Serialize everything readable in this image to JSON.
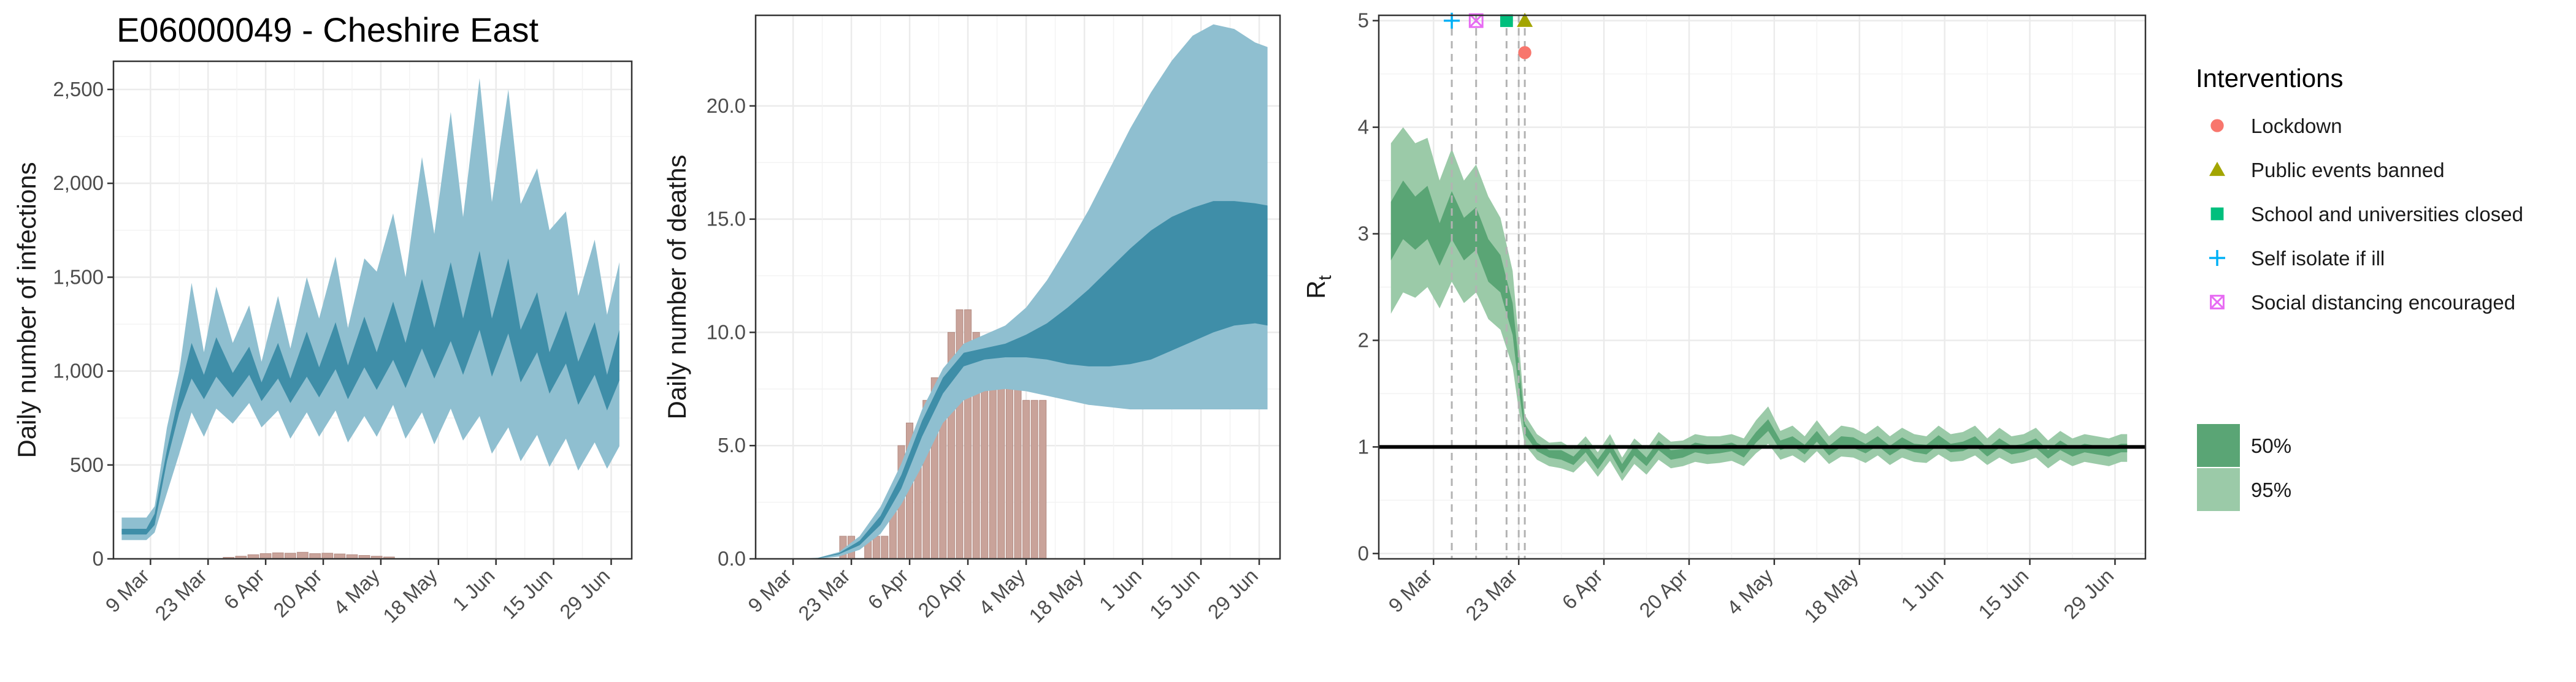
{
  "title": "E06000049 - Cheshire East",
  "colors": {
    "infections_band95": "#8fbfd0",
    "infections_band50": "#3f8ea8",
    "deaths_band95": "#8fbfd0",
    "deaths_band50": "#3f8ea8",
    "observed_bars": "#c9a39a",
    "rt_band95": "#9bcaa8",
    "rt_band50": "#5aa575",
    "rt_line": "#000000",
    "lockdown": "#f8766d",
    "public_events": "#a3a500",
    "schools": "#00bf7d",
    "self_isolate": "#00b0f6",
    "social_distancing": "#e76bf3",
    "grid": "#ebebeb",
    "panel_border": "#333333"
  },
  "chart_data": [
    {
      "id": "infections",
      "type": "area",
      "xlabel": "",
      "ylabel": "Daily number of infections",
      "x_range": [
        "2020-02-29",
        "2020-07-04"
      ],
      "ylim": [
        0,
        2650
      ],
      "x_ticks": [
        "9 Mar",
        "23 Mar",
        "6 Apr",
        "20 Apr",
        "4 May",
        "18 May",
        "1 Jun",
        "15 Jun",
        "29 Jun"
      ],
      "x_tick_dates": [
        "2020-03-09",
        "2020-03-23",
        "2020-04-06",
        "2020-04-20",
        "2020-05-04",
        "2020-05-18",
        "2020-06-01",
        "2020-06-15",
        "2020-06-29"
      ],
      "y_ticks": [
        0,
        500,
        1000,
        1500,
        2000,
        2500
      ],
      "y_tick_labels": [
        "0",
        "500",
        "1,000",
        "1,500",
        "2,000",
        "2,500"
      ],
      "series": [
        {
          "x": [
            "2020-03-02",
            "2020-03-08",
            "2020-03-10",
            "2020-03-13",
            "2020-03-16",
            "2020-03-19",
            "2020-03-22",
            "2020-03-25",
            "2020-03-29",
            "2020-04-02",
            "2020-04-05",
            "2020-04-09",
            "2020-04-12",
            "2020-04-16",
            "2020-04-19",
            "2020-04-23",
            "2020-04-26",
            "2020-04-30",
            "2020-05-03",
            "2020-05-07",
            "2020-05-10",
            "2020-05-14",
            "2020-05-17",
            "2020-05-21",
            "2020-05-24",
            "2020-05-28",
            "2020-05-31",
            "2020-06-04",
            "2020-06-07",
            "2020-06-11",
            "2020-06-14",
            "2020-06-18",
            "2020-06-21",
            "2020-06-25",
            "2020-06-28",
            "2020-07-01"
          ],
          "lower95": [
            100,
            100,
            140,
            350,
            560,
            780,
            650,
            800,
            720,
            830,
            700,
            790,
            640,
            780,
            650,
            790,
            620,
            760,
            650,
            820,
            640,
            780,
            610,
            800,
            630,
            760,
            560,
            700,
            520,
            660,
            490,
            640,
            470,
            620,
            480,
            600
          ],
          "upper95": [
            220,
            220,
            280,
            700,
            1000,
            1470,
            1100,
            1450,
            1150,
            1350,
            1050,
            1400,
            1120,
            1500,
            1280,
            1610,
            1230,
            1600,
            1530,
            1840,
            1500,
            2140,
            1730,
            2380,
            1820,
            2560,
            1900,
            2500,
            1890,
            2080,
            1750,
            1850,
            1400,
            1700,
            1300,
            1580
          ],
          "lower50": [
            130,
            130,
            180,
            520,
            780,
            960,
            850,
            970,
            860,
            980,
            840,
            960,
            830,
            970,
            860,
            1010,
            850,
            1020,
            900,
            1060,
            910,
            1120,
            960,
            1160,
            980,
            1220,
            970,
            1200,
            940,
            1100,
            880,
            1040,
            820,
            980,
            790,
            950
          ],
          "upper50": [
            160,
            160,
            240,
            580,
            880,
            1150,
            980,
            1180,
            990,
            1130,
            940,
            1150,
            960,
            1210,
            1020,
            1260,
            1030,
            1290,
            1100,
            1370,
            1150,
            1490,
            1230,
            1580,
            1280,
            1640,
            1280,
            1600,
            1220,
            1420,
            1100,
            1320,
            1050,
            1260,
            980,
            1220
          ]
        }
      ],
      "observed": {
        "x": [
          "2020-03-28",
          "2020-03-31",
          "2020-04-03",
          "2020-04-06",
          "2020-04-09",
          "2020-04-12",
          "2020-04-15",
          "2020-04-18",
          "2020-04-21",
          "2020-04-24",
          "2020-04-27",
          "2020-04-30",
          "2020-05-03",
          "2020-05-06"
        ],
        "values": [
          8,
          14,
          22,
          28,
          32,
          30,
          35,
          28,
          30,
          26,
          22,
          18,
          14,
          10
        ]
      }
    },
    {
      "id": "deaths",
      "type": "area",
      "xlabel": "",
      "ylabel": "Daily number of deaths",
      "x_range": [
        "2020-02-29",
        "2020-07-04"
      ],
      "ylim": [
        0,
        24
      ],
      "x_ticks": [
        "9 Mar",
        "23 Mar",
        "6 Apr",
        "20 Apr",
        "4 May",
        "18 May",
        "1 Jun",
        "15 Jun",
        "29 Jun"
      ],
      "x_tick_dates": [
        "2020-03-09",
        "2020-03-23",
        "2020-04-06",
        "2020-04-20",
        "2020-05-04",
        "2020-05-18",
        "2020-06-01",
        "2020-06-15",
        "2020-06-29"
      ],
      "y_ticks": [
        0,
        5,
        10,
        15,
        20
      ],
      "y_tick_labels": [
        "0.0",
        "5.0",
        "10.0",
        "15.0",
        "20.0"
      ],
      "series": [
        {
          "x": [
            "2020-03-10",
            "2020-03-15",
            "2020-03-20",
            "2020-03-25",
            "2020-03-30",
            "2020-04-04",
            "2020-04-09",
            "2020-04-14",
            "2020-04-19",
            "2020-04-24",
            "2020-04-29",
            "2020-05-04",
            "2020-05-09",
            "2020-05-14",
            "2020-05-19",
            "2020-05-24",
            "2020-05-29",
            "2020-06-03",
            "2020-06-08",
            "2020-06-13",
            "2020-06-18",
            "2020-06-23",
            "2020-06-28",
            "2020-07-01"
          ],
          "lower95": [
            0,
            0,
            0.1,
            0.4,
            1.1,
            2.4,
            4.1,
            6.0,
            7.0,
            7.4,
            7.5,
            7.4,
            7.2,
            7.0,
            6.8,
            6.7,
            6.6,
            6.6,
            6.6,
            6.6,
            6.6,
            6.6,
            6.6,
            6.6
          ],
          "upper95": [
            0,
            0.05,
            0.3,
            1.0,
            2.3,
            4.2,
            6.6,
            8.4,
            9.5,
            9.9,
            10.3,
            11.1,
            12.3,
            13.8,
            15.4,
            17.2,
            19.0,
            20.6,
            22.0,
            23.1,
            23.6,
            23.4,
            22.8,
            22.6
          ],
          "lower50": [
            0,
            0.02,
            0.2,
            0.6,
            1.5,
            3.1,
            5.4,
            7.3,
            8.5,
            8.8,
            8.9,
            8.9,
            8.8,
            8.6,
            8.5,
            8.5,
            8.6,
            8.8,
            9.2,
            9.6,
            10.0,
            10.3,
            10.4,
            10.3
          ],
          "upper50": [
            0,
            0.04,
            0.25,
            0.8,
            1.9,
            3.7,
            6.1,
            8.0,
            9.1,
            9.3,
            9.5,
            9.9,
            10.4,
            11.1,
            11.9,
            12.8,
            13.7,
            14.5,
            15.1,
            15.5,
            15.8,
            15.8,
            15.7,
            15.6
          ]
        }
      ],
      "observed": {
        "x": [
          "2020-03-21",
          "2020-03-23",
          "2020-03-25",
          "2020-03-27",
          "2020-03-29",
          "2020-03-31",
          "2020-04-02",
          "2020-04-04",
          "2020-04-06",
          "2020-04-08",
          "2020-04-10",
          "2020-04-12",
          "2020-04-14",
          "2020-04-16",
          "2020-04-18",
          "2020-04-20",
          "2020-04-22",
          "2020-04-24",
          "2020-04-26",
          "2020-04-28",
          "2020-04-30",
          "2020-05-02",
          "2020-05-04",
          "2020-05-06",
          "2020-05-08"
        ],
        "values": [
          1,
          1,
          0,
          1,
          1,
          1,
          3,
          5,
          6,
          5,
          7,
          8,
          8,
          10,
          11,
          11,
          10,
          9,
          8,
          8,
          8,
          8,
          7,
          7,
          7
        ]
      }
    },
    {
      "id": "rt",
      "type": "area",
      "xlabel": "",
      "ylabel": "R",
      "ylabel_sub": "t",
      "x_range": [
        "2020-02-29",
        "2020-07-04"
      ],
      "ylim": [
        -0.05,
        5.05
      ],
      "x_ticks": [
        "9 Mar",
        "23 Mar",
        "6 Apr",
        "20 Apr",
        "4 May",
        "18 May",
        "1 Jun",
        "15 Jun",
        "29 Jun"
      ],
      "x_tick_dates": [
        "2020-03-09",
        "2020-03-23",
        "2020-04-06",
        "2020-04-20",
        "2020-05-04",
        "2020-05-18",
        "2020-06-01",
        "2020-06-15",
        "2020-06-29"
      ],
      "y_ticks": [
        0,
        1,
        2,
        3,
        4,
        5
      ],
      "y_tick_labels": [
        "0",
        "1",
        "2",
        "3",
        "4",
        "5"
      ],
      "reference_line": 1,
      "series": [
        {
          "x": [
            "2020-03-02",
            "2020-03-04",
            "2020-03-06",
            "2020-03-08",
            "2020-03-10",
            "2020-03-12",
            "2020-03-14",
            "2020-03-16",
            "2020-03-18",
            "2020-03-20",
            "2020-03-22",
            "2020-03-23",
            "2020-03-24",
            "2020-03-26",
            "2020-03-28",
            "2020-03-30",
            "2020-04-01",
            "2020-04-03",
            "2020-04-05",
            "2020-04-07",
            "2020-04-09",
            "2020-04-11",
            "2020-04-13",
            "2020-04-15",
            "2020-04-17",
            "2020-04-19",
            "2020-04-21",
            "2020-04-23",
            "2020-04-25",
            "2020-04-27",
            "2020-04-29",
            "2020-05-01",
            "2020-05-03",
            "2020-05-05",
            "2020-05-07",
            "2020-05-09",
            "2020-05-11",
            "2020-05-13",
            "2020-05-15",
            "2020-05-17",
            "2020-05-19",
            "2020-05-21",
            "2020-05-23",
            "2020-05-25",
            "2020-05-27",
            "2020-05-29",
            "2020-05-31",
            "2020-06-02",
            "2020-06-04",
            "2020-06-06",
            "2020-06-08",
            "2020-06-10",
            "2020-06-12",
            "2020-06-14",
            "2020-06-16",
            "2020-06-18",
            "2020-06-20",
            "2020-06-22",
            "2020-06-24",
            "2020-06-26",
            "2020-06-28",
            "2020-06-30",
            "2020-07-01"
          ],
          "lower95": [
            2.25,
            2.45,
            2.4,
            2.5,
            2.3,
            2.55,
            2.35,
            2.45,
            2.2,
            2.1,
            1.75,
            1.35,
            1.02,
            0.88,
            0.82,
            0.8,
            0.76,
            0.87,
            0.72,
            0.87,
            0.68,
            0.84,
            0.74,
            0.88,
            0.8,
            0.82,
            0.86,
            0.84,
            0.85,
            0.87,
            0.82,
            0.94,
            1.03,
            0.88,
            0.92,
            0.85,
            0.96,
            0.84,
            0.91,
            0.9,
            0.85,
            0.92,
            0.83,
            0.9,
            0.86,
            0.85,
            0.93,
            0.86,
            0.87,
            0.92,
            0.83,
            0.9,
            0.84,
            0.86,
            0.9,
            0.8,
            0.88,
            0.82,
            0.86,
            0.84,
            0.82,
            0.86,
            0.86
          ],
          "upper95": [
            3.85,
            4.0,
            3.85,
            3.9,
            3.5,
            3.8,
            3.5,
            3.65,
            3.35,
            3.15,
            2.65,
            2.0,
            1.3,
            1.12,
            1.04,
            1.05,
            0.98,
            1.1,
            0.95,
            1.12,
            0.9,
            1.08,
            0.98,
            1.14,
            1.05,
            1.06,
            1.12,
            1.1,
            1.1,
            1.12,
            1.08,
            1.25,
            1.38,
            1.15,
            1.2,
            1.1,
            1.25,
            1.1,
            1.2,
            1.18,
            1.12,
            1.2,
            1.1,
            1.18,
            1.12,
            1.1,
            1.2,
            1.12,
            1.14,
            1.2,
            1.08,
            1.18,
            1.1,
            1.12,
            1.18,
            1.06,
            1.15,
            1.08,
            1.12,
            1.1,
            1.08,
            1.12,
            1.12
          ],
          "lower50": [
            2.75,
            2.95,
            2.85,
            2.95,
            2.7,
            2.95,
            2.75,
            2.85,
            2.55,
            2.45,
            2.05,
            1.55,
            1.12,
            0.96,
            0.9,
            0.88,
            0.83,
            0.95,
            0.79,
            0.95,
            0.75,
            0.92,
            0.82,
            0.97,
            0.88,
            0.9,
            0.95,
            0.93,
            0.94,
            0.96,
            0.9,
            1.04,
            1.15,
            0.97,
            1.01,
            0.93,
            1.05,
            0.92,
            1.0,
            0.99,
            0.94,
            1.01,
            0.92,
            0.99,
            0.95,
            0.93,
            1.02,
            0.95,
            0.96,
            1.01,
            0.91,
            0.99,
            0.93,
            0.95,
            0.99,
            0.89,
            0.97,
            0.91,
            0.95,
            0.93,
            0.91,
            0.95,
            0.95
          ],
          "upper50": [
            3.3,
            3.5,
            3.35,
            3.45,
            3.1,
            3.4,
            3.15,
            3.25,
            2.95,
            2.8,
            2.35,
            1.8,
            1.22,
            1.04,
            0.97,
            0.97,
            0.91,
            1.03,
            0.88,
            1.04,
            0.84,
            1.01,
            0.9,
            1.06,
            0.97,
            0.98,
            1.04,
            1.02,
            1.02,
            1.04,
            0.99,
            1.14,
            1.26,
            1.06,
            1.1,
            1.02,
            1.15,
            1.01,
            1.1,
            1.09,
            1.03,
            1.1,
            1.01,
            1.09,
            1.03,
            1.02,
            1.11,
            1.03,
            1.05,
            1.1,
            0.99,
            1.08,
            1.01,
            1.03,
            1.08,
            0.97,
            1.06,
            0.99,
            1.03,
            1.01,
            0.99,
            1.03,
            1.03
          ]
        }
      ],
      "intervention_lines": [
        "2020-03-12",
        "2020-03-16",
        "2020-03-21",
        "2020-03-23",
        "2020-03-24"
      ],
      "interventions": [
        {
          "name": "Self isolate if ill",
          "date": "2020-03-12",
          "y": 5.0,
          "shape": "plus",
          "color_key": "self_isolate"
        },
        {
          "name": "Social distancing encouraged",
          "date": "2020-03-16",
          "y": 5.0,
          "shape": "boxx",
          "color_key": "social_distancing"
        },
        {
          "name": "School and universities closed",
          "date": "2020-03-21",
          "y": 5.0,
          "shape": "square",
          "color_key": "schools"
        },
        {
          "name": "Public events banned",
          "date": "2020-03-24",
          "y": 5.0,
          "shape": "triangle",
          "color_key": "public_events"
        },
        {
          "name": "Lockdown",
          "date": "2020-03-24",
          "y": 4.7,
          "shape": "circle",
          "color_key": "lockdown"
        }
      ]
    }
  ],
  "legend": {
    "title": "Interventions",
    "items": [
      {
        "label": "Lockdown",
        "shape": "circle",
        "color_key": "lockdown"
      },
      {
        "label": "Public events banned",
        "shape": "triangle",
        "color_key": "public_events"
      },
      {
        "label": "School and universities closed",
        "shape": "square",
        "color_key": "schools"
      },
      {
        "label": "Self isolate if ill",
        "shape": "plus",
        "color_key": "self_isolate"
      },
      {
        "label": "Social distancing encouraged",
        "shape": "boxx",
        "color_key": "social_distancing"
      }
    ],
    "bands": [
      {
        "label": "50%",
        "color_key": "rt_band50"
      },
      {
        "label": "95%",
        "color_key": "rt_band95"
      }
    ]
  }
}
